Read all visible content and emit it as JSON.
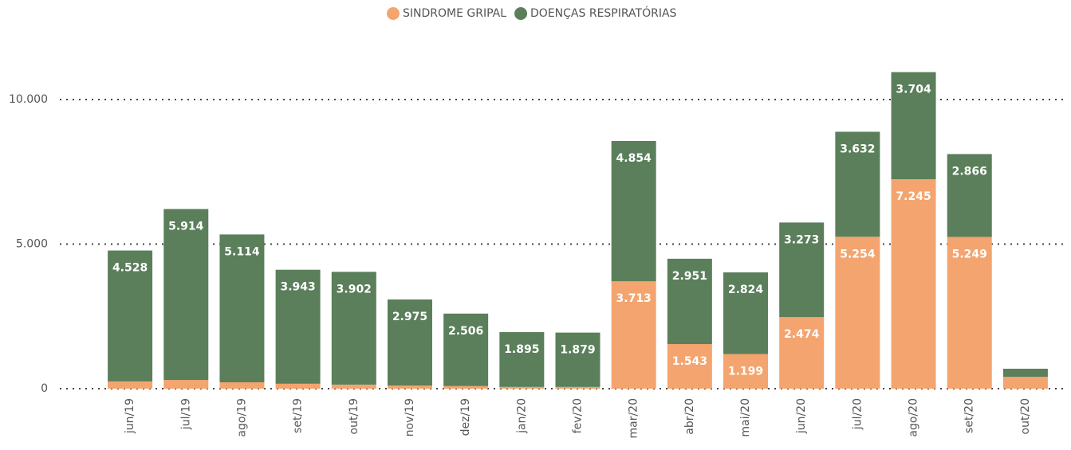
{
  "chart_data": {
    "type": "stacked_bar",
    "categories": [
      "jun/19",
      "jul/19",
      "ago/19",
      "set/19",
      "out/19",
      "nov/19",
      "dez/19",
      "jan/20",
      "fev/20",
      "mar/20",
      "abr/20",
      "mai/20",
      "jun/20",
      "jul/20",
      "ago/20",
      "set/20",
      "out/20"
    ],
    "series": [
      {
        "name": "SINDROME GRIPAL",
        "color": "#f4a46e",
        "values": [
          250,
          300,
          220,
          170,
          140,
          110,
          90,
          60,
          60,
          3713,
          1543,
          1199,
          2474,
          5254,
          7245,
          5249,
          410
        ],
        "value_labels": [
          null,
          null,
          null,
          null,
          null,
          null,
          null,
          null,
          null,
          "3.713",
          "1.543",
          "1.199",
          "2.474",
          "5.254",
          "7.245",
          "5.249",
          null
        ]
      },
      {
        "name": "DOENÇAS RESPIRATÓRIAS",
        "color": "#5a7f5a",
        "values": [
          4528,
          5914,
          5114,
          3943,
          3902,
          2975,
          2506,
          1895,
          1879,
          4854,
          2951,
          2824,
          3273,
          3632,
          3704,
          2866,
          280
        ],
        "value_labels": [
          "4.528",
          "5.914",
          "5.114",
          "3.943",
          "3.902",
          "2.975",
          "2.506",
          "1.895",
          "1.879",
          "4.854",
          "2.951",
          "2.824",
          "3.273",
          "3.632",
          "3.704",
          "2.866",
          null
        ]
      }
    ],
    "ylim": [
      0,
      12000
    ],
    "yticks": [
      0,
      {
        "value": 5000,
        "label": "5.000"
      },
      {
        "value": 10000,
        "label": "10.000"
      }
    ],
    "grid": true,
    "legend": "top"
  }
}
